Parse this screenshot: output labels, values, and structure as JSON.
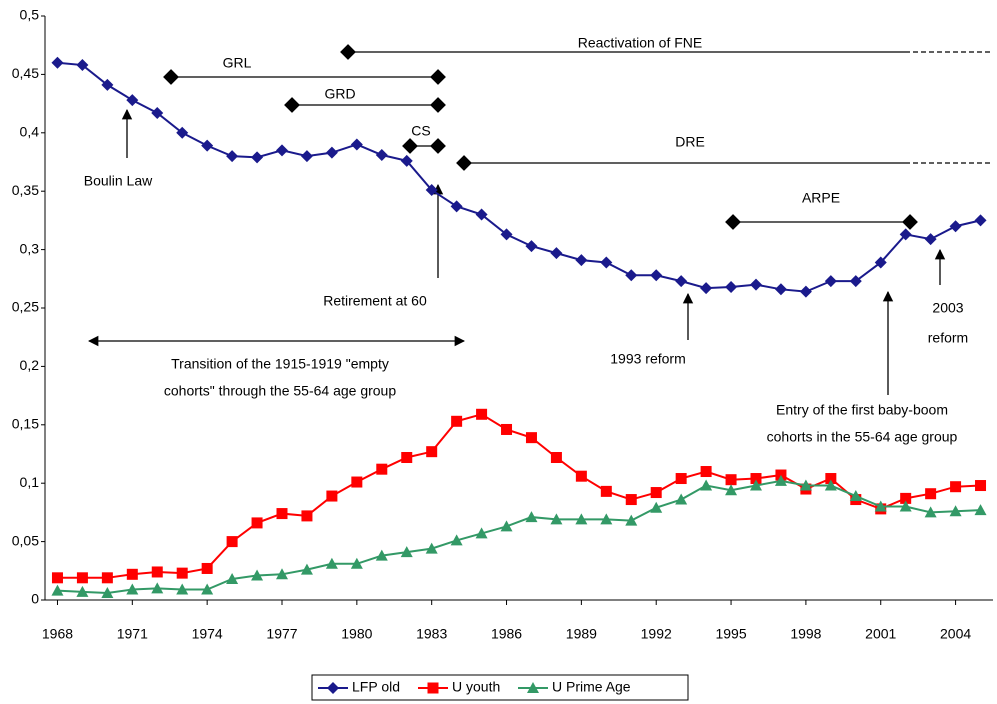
{
  "chart_data": {
    "type": "line",
    "x": [
      1968,
      1969,
      1970,
      1971,
      1972,
      1973,
      1974,
      1975,
      1976,
      1977,
      1978,
      1979,
      1980,
      1981,
      1982,
      1983,
      1984,
      1985,
      1986,
      1987,
      1988,
      1989,
      1990,
      1991,
      1992,
      1993,
      1994,
      1995,
      1996,
      1997,
      1998,
      1999,
      2000,
      2001,
      2002,
      2003,
      2004,
      2005
    ],
    "xlim": [
      1967.5,
      2005.5
    ],
    "xticks": [
      1968,
      1971,
      1974,
      1977,
      1980,
      1983,
      1986,
      1989,
      1992,
      1995,
      1998,
      2001,
      2004
    ],
    "ylim": [
      0,
      0.5
    ],
    "yticks": [
      0,
      {
        "value": 0.05,
        "label": "0,05"
      },
      {
        "value": 0.1,
        "label": "0,1"
      },
      {
        "value": 0.15,
        "label": "0,15"
      },
      {
        "value": 0.2,
        "label": "0,2"
      },
      {
        "value": 0.25,
        "label": "0,25"
      },
      {
        "value": 0.3,
        "label": "0,3"
      },
      {
        "value": 0.35,
        "label": "0,35"
      },
      {
        "value": 0.4,
        "label": "0,4"
      },
      {
        "value": 0.45,
        "label": "0,45"
      },
      {
        "value": 0.5,
        "label": "0,5"
      }
    ],
    "legend": "bottom",
    "series": [
      {
        "name": "LFP old",
        "color": "#1a1a8c",
        "marker": "diamond",
        "values": [
          0.46,
          0.458,
          0.441,
          0.428,
          0.417,
          0.4,
          0.389,
          0.38,
          0.379,
          0.385,
          0.38,
          0.383,
          0.39,
          0.381,
          0.376,
          0.351,
          0.337,
          0.33,
          0.313,
          0.303,
          0.297,
          0.291,
          0.289,
          0.278,
          0.278,
          0.273,
          0.267,
          0.268,
          0.27,
          0.266,
          0.264,
          0.273,
          0.273,
          0.289,
          0.313,
          0.309,
          0.32,
          0.325
        ]
      },
      {
        "name": "U youth",
        "color": "#ff0000",
        "marker": "square",
        "values": [
          0.019,
          0.019,
          0.019,
          0.022,
          0.024,
          0.023,
          0.027,
          0.05,
          0.066,
          0.074,
          0.072,
          0.089,
          0.101,
          0.112,
          0.122,
          0.127,
          0.153,
          0.159,
          0.146,
          0.139,
          0.122,
          0.106,
          0.093,
          0.086,
          0.092,
          0.104,
          0.11,
          0.103,
          0.104,
          0.107,
          0.095,
          0.104,
          0.086,
          0.078,
          0.087,
          0.091,
          0.097,
          0.098
        ]
      },
      {
        "name": "U Prime Age",
        "color": "#339966",
        "marker": "triangle",
        "values": [
          0.008,
          0.007,
          0.006,
          0.009,
          0.01,
          0.009,
          0.009,
          0.018,
          0.021,
          0.022,
          0.026,
          0.031,
          0.031,
          0.038,
          0.041,
          0.044,
          0.051,
          0.057,
          0.063,
          0.071,
          0.069,
          0.069,
          0.069,
          0.068,
          0.079,
          0.086,
          0.098,
          0.094,
          0.098,
          0.102,
          0.098,
          0.098,
          0.089,
          0.08,
          0.08,
          0.075,
          0.076,
          0.077
        ]
      }
    ],
    "annotations": [
      "Reactivation of FNE",
      "GRL",
      "GRD",
      "CS",
      "DRE",
      "ARPE",
      "Boulin Law",
      "Retirement at 60",
      "Transition of the 1915-1919 \"empty",
      "cohorts\" through the 55-64 age group",
      "1993 reform",
      "Entry of the first baby-boom",
      "cohorts in the 55-64 age group",
      "2003",
      "reform"
    ]
  }
}
